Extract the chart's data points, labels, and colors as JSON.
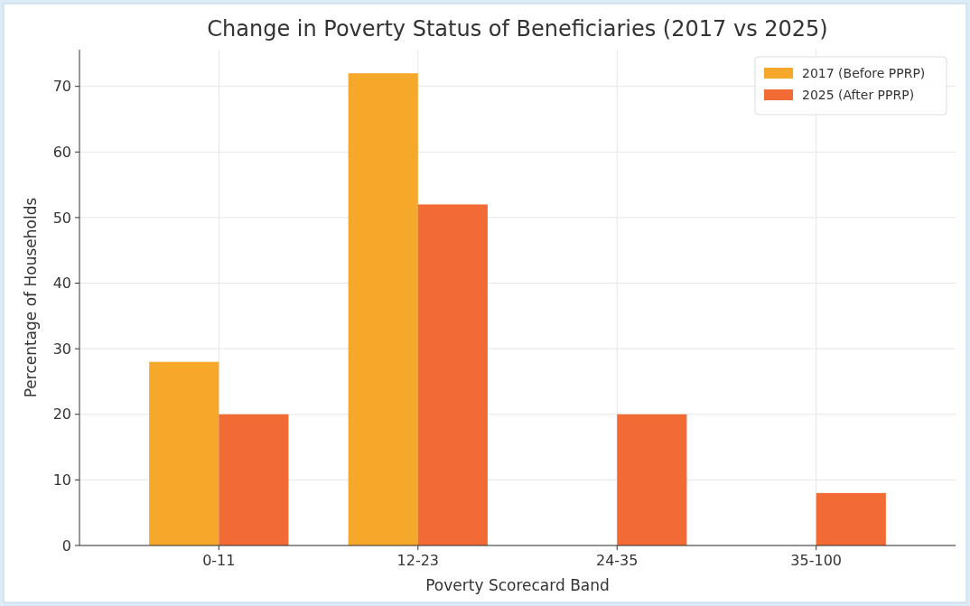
{
  "chart_data": {
    "type": "bar",
    "title": "Change in Poverty Status of Beneficiaries (2017 vs 2025)",
    "xlabel": "Poverty Scorecard Band",
    "ylabel": "Percentage of Households",
    "categories": [
      "0-11",
      "12-23",
      "24-35",
      "35-100"
    ],
    "series": [
      {
        "name": "2017 (Before PPRP)",
        "color": "#f6a82a",
        "values": [
          28,
          72,
          0,
          0
        ]
      },
      {
        "name": "2025 (After PPRP)",
        "color": "#f26b35",
        "values": [
          20,
          52,
          20,
          8
        ]
      }
    ],
    "ylim": [
      0,
      75.6
    ],
    "yticks": [
      0,
      10,
      20,
      30,
      40,
      50,
      60,
      70
    ],
    "grid": true,
    "legend": "top right"
  }
}
